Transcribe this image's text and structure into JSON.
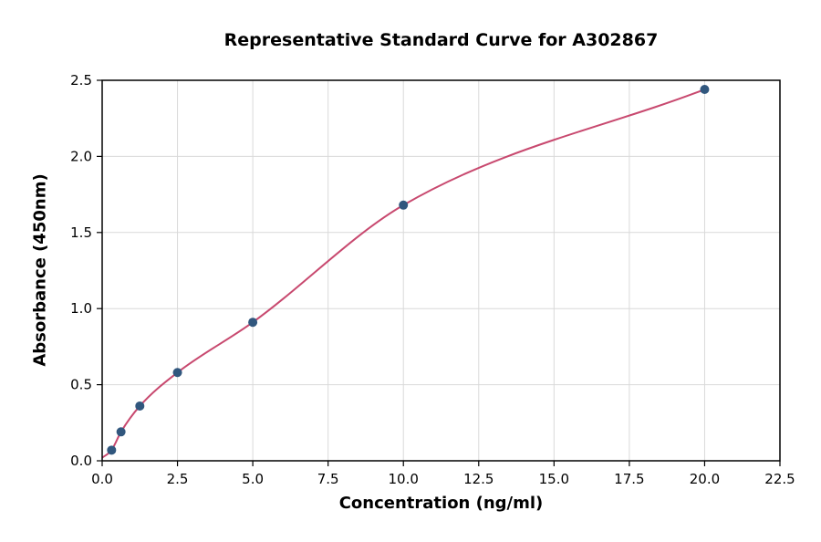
{
  "chart_data": {
    "type": "scatter",
    "title": "Representative Standard Curve for A302867",
    "xlabel": "Concentration (ng/ml)",
    "ylabel": "Absorbance (450nm)",
    "x": [
      0.3125,
      0.625,
      1.25,
      2.5,
      5,
      10,
      20
    ],
    "y": [
      0.07,
      0.19,
      0.36,
      0.58,
      0.91,
      1.68,
      2.44
    ],
    "curve_start": {
      "x": 0,
      "y": 0.02
    },
    "xlim": [
      0,
      22.5
    ],
    "ylim": [
      0,
      2.5
    ],
    "xticks": [
      0.0,
      2.5,
      5.0,
      7.5,
      10.0,
      12.5,
      15.0,
      17.5,
      20.0,
      22.5
    ],
    "xtick_labels": [
      "0.0",
      "2.5",
      "5.0",
      "7.5",
      "10.0",
      "12.5",
      "15.0",
      "17.5",
      "20.0",
      "22.5"
    ],
    "yticks": [
      0.0,
      0.5,
      1.0,
      1.5,
      2.0,
      2.5
    ],
    "ytick_labels": [
      "0.0",
      "0.5",
      "1.0",
      "1.5",
      "2.0",
      "2.5"
    ],
    "grid": true,
    "legend": "none",
    "colors": {
      "point": "#31577e",
      "curve": "#c8496f",
      "grid": "#d9d9d9",
      "spine": "#000000"
    }
  }
}
